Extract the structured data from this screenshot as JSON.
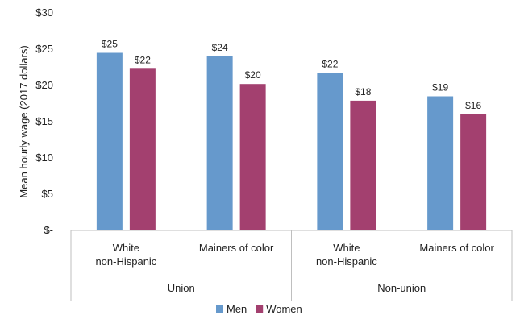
{
  "chart_data": {
    "type": "bar",
    "title": "",
    "xlabel": "",
    "ylabel": "Mean hourly wage (2017 dollars)",
    "ylim": [
      0,
      30
    ],
    "yticks": [
      0,
      5,
      10,
      15,
      20,
      25,
      30
    ],
    "ytick_labels": [
      "$-",
      "$5",
      "$10",
      "$15",
      "$20",
      "$25",
      "$30"
    ],
    "grid": false,
    "legend_position": "bottom",
    "groups": [
      {
        "label": "Union",
        "categories": [
          "White\nnon-Hispanic",
          "Mainers of color"
        ]
      },
      {
        "label": "Non-union",
        "categories": [
          "White\nnon-Hispanic",
          "Mainers of color"
        ]
      }
    ],
    "categories": [
      "White non-Hispanic",
      "Mainers of color",
      "White non-Hispanic",
      "Mainers of color"
    ],
    "series": [
      {
        "name": "Men",
        "color": "#6699cc",
        "values": [
          24.5,
          24.0,
          21.7,
          18.5
        ],
        "labels": [
          "$25",
          "$24",
          "$22",
          "$19"
        ]
      },
      {
        "name": "Women",
        "color": "#a3406f",
        "values": [
          22.3,
          20.2,
          17.9,
          16.0
        ],
        "labels": [
          "$22",
          "$20",
          "$18",
          "$16"
        ]
      }
    ]
  }
}
